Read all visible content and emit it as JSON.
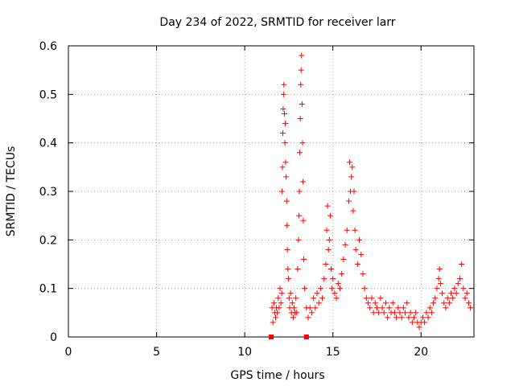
{
  "chart_data": {
    "type": "scatter",
    "title": "Day 234 of 2022, SRMTID for receiver larr",
    "xlabel": "GPS time / hours",
    "ylabel": "SRMTID / TECUs",
    "xlim": [
      0,
      23
    ],
    "ylim": [
      0,
      0.6
    ],
    "x_ticks": [
      0,
      5,
      10,
      15,
      20
    ],
    "x_tick_labels": [
      "0",
      "5",
      "10",
      "15",
      "20"
    ],
    "y_ticks": [
      0,
      0.1,
      0.2,
      0.3,
      0.4,
      0.5,
      0.6
    ],
    "y_tick_labels": [
      "0",
      "0.1",
      "0.2",
      "0.3",
      "0.4",
      "0.5",
      "0.6"
    ],
    "grid": true,
    "marker": "+",
    "color": "#ff0000",
    "edge_markers": [
      11.5,
      13.5
    ],
    "series": [
      {
        "name": "SRMTID",
        "points": [
          [
            11.55,
            0.06
          ],
          [
            11.6,
            0.03
          ],
          [
            11.65,
            0.07
          ],
          [
            11.7,
            0.05
          ],
          [
            11.75,
            0.04
          ],
          [
            11.8,
            0.06
          ],
          [
            11.85,
            0.05
          ],
          [
            11.9,
            0.08
          ],
          [
            11.95,
            0.06
          ],
          [
            12.0,
            0.1
          ],
          [
            12.05,
            0.07
          ],
          [
            12.1,
            0.09
          ],
          [
            12.12,
            0.3
          ],
          [
            12.14,
            0.35
          ],
          [
            12.16,
            0.42
          ],
          [
            12.18,
            0.47
          ],
          [
            12.2,
            0.5
          ],
          [
            12.22,
            0.52
          ],
          [
            12.25,
            0.46
          ],
          [
            12.28,
            0.4
          ],
          [
            12.3,
            0.44
          ],
          [
            12.32,
            0.36
          ],
          [
            12.35,
            0.33
          ],
          [
            12.38,
            0.28
          ],
          [
            12.4,
            0.23
          ],
          [
            12.42,
            0.18
          ],
          [
            12.45,
            0.14
          ],
          [
            12.48,
            0.12
          ],
          [
            12.52,
            0.08
          ],
          [
            12.55,
            0.06
          ],
          [
            12.6,
            0.09
          ],
          [
            12.65,
            0.05
          ],
          [
            12.7,
            0.07
          ],
          [
            12.75,
            0.04
          ],
          [
            12.8,
            0.06
          ],
          [
            12.85,
            0.05
          ],
          [
            12.9,
            0.08
          ],
          [
            12.95,
            0.05
          ],
          [
            13.0,
            0.14
          ],
          [
            13.05,
            0.2
          ],
          [
            13.08,
            0.25
          ],
          [
            13.1,
            0.3
          ],
          [
            13.12,
            0.38
          ],
          [
            13.15,
            0.45
          ],
          [
            13.18,
            0.52
          ],
          [
            13.2,
            0.55
          ],
          [
            13.22,
            0.58
          ],
          [
            13.25,
            0.48
          ],
          [
            13.28,
            0.4
          ],
          [
            13.3,
            0.32
          ],
          [
            13.32,
            0.24
          ],
          [
            13.35,
            0.16
          ],
          [
            13.4,
            0.1
          ],
          [
            13.5,
            0.06
          ],
          [
            13.6,
            0.04
          ],
          [
            13.7,
            0.06
          ],
          [
            13.8,
            0.05
          ],
          [
            13.9,
            0.08
          ],
          [
            14.0,
            0.06
          ],
          [
            14.1,
            0.09
          ],
          [
            14.2,
            0.07
          ],
          [
            14.3,
            0.1
          ],
          [
            14.4,
            0.08
          ],
          [
            14.5,
            0.12
          ],
          [
            14.6,
            0.15
          ],
          [
            14.65,
            0.22
          ],
          [
            14.7,
            0.27
          ],
          [
            14.75,
            0.18
          ],
          [
            14.8,
            0.2
          ],
          [
            14.85,
            0.25
          ],
          [
            14.9,
            0.14
          ],
          [
            14.95,
            0.1
          ],
          [
            15.0,
            0.12
          ],
          [
            15.1,
            0.09
          ],
          [
            15.2,
            0.08
          ],
          [
            15.3,
            0.11
          ],
          [
            15.4,
            0.1
          ],
          [
            15.5,
            0.13
          ],
          [
            15.6,
            0.16
          ],
          [
            15.7,
            0.19
          ],
          [
            15.8,
            0.22
          ],
          [
            15.9,
            0.28
          ],
          [
            15.95,
            0.36
          ],
          [
            16.0,
            0.3
          ],
          [
            16.05,
            0.33
          ],
          [
            16.1,
            0.35
          ],
          [
            16.15,
            0.26
          ],
          [
            16.2,
            0.3
          ],
          [
            16.25,
            0.22
          ],
          [
            16.3,
            0.18
          ],
          [
            16.4,
            0.15
          ],
          [
            16.5,
            0.2
          ],
          [
            16.6,
            0.17
          ],
          [
            16.7,
            0.13
          ],
          [
            16.8,
            0.1
          ],
          [
            16.9,
            0.08
          ],
          [
            17.0,
            0.07
          ],
          [
            17.1,
            0.06
          ],
          [
            17.2,
            0.08
          ],
          [
            17.3,
            0.05
          ],
          [
            17.4,
            0.07
          ],
          [
            17.5,
            0.06
          ],
          [
            17.6,
            0.05
          ],
          [
            17.7,
            0.08
          ],
          [
            17.8,
            0.06
          ],
          [
            17.9,
            0.05
          ],
          [
            18.0,
            0.07
          ],
          [
            18.1,
            0.04
          ],
          [
            18.2,
            0.06
          ],
          [
            18.3,
            0.05
          ],
          [
            18.4,
            0.07
          ],
          [
            18.5,
            0.05
          ],
          [
            18.6,
            0.04
          ],
          [
            18.7,
            0.06
          ],
          [
            18.8,
            0.05
          ],
          [
            18.9,
            0.04
          ],
          [
            19.0,
            0.06
          ],
          [
            19.1,
            0.05
          ],
          [
            19.2,
            0.07
          ],
          [
            19.3,
            0.04
          ],
          [
            19.4,
            0.05
          ],
          [
            19.5,
            0.03
          ],
          [
            19.6,
            0.04
          ],
          [
            19.7,
            0.05
          ],
          [
            19.8,
            0.03
          ],
          [
            19.9,
            0.02
          ],
          [
            20.0,
            0.03
          ],
          [
            20.1,
            0.04
          ],
          [
            20.2,
            0.03
          ],
          [
            20.3,
            0.05
          ],
          [
            20.4,
            0.04
          ],
          [
            20.5,
            0.06
          ],
          [
            20.6,
            0.05
          ],
          [
            20.7,
            0.07
          ],
          [
            20.8,
            0.08
          ],
          [
            20.9,
            0.1
          ],
          [
            21.0,
            0.12
          ],
          [
            21.05,
            0.14
          ],
          [
            21.1,
            0.11
          ],
          [
            21.2,
            0.09
          ],
          [
            21.3,
            0.07
          ],
          [
            21.4,
            0.06
          ],
          [
            21.5,
            0.08
          ],
          [
            21.6,
            0.07
          ],
          [
            21.7,
            0.09
          ],
          [
            21.8,
            0.08
          ],
          [
            21.9,
            0.1
          ],
          [
            22.0,
            0.09
          ],
          [
            22.1,
            0.11
          ],
          [
            22.2,
            0.12
          ],
          [
            22.3,
            0.15
          ],
          [
            22.4,
            0.1
          ],
          [
            22.5,
            0.08
          ],
          [
            22.6,
            0.09
          ],
          [
            22.7,
            0.07
          ],
          [
            22.8,
            0.06
          ]
        ]
      }
    ]
  }
}
